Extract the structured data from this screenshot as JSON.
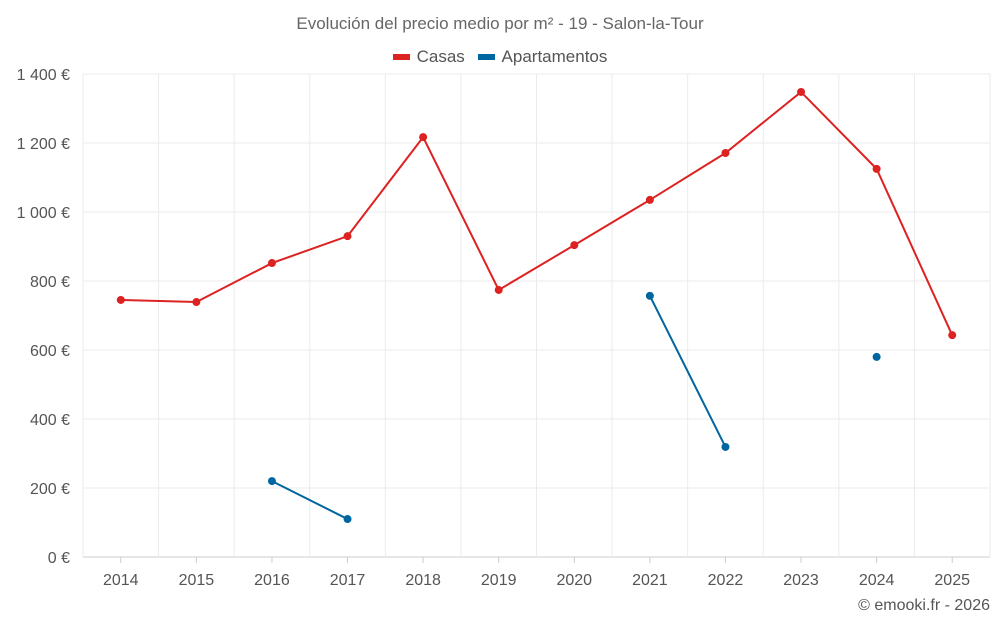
{
  "chart_data": {
    "type": "line",
    "title": "Evolución del precio medio por m² - 19 - Salon-la-Tour",
    "categories": [
      "2014",
      "2015",
      "2016",
      "2017",
      "2018",
      "2019",
      "2020",
      "2021",
      "2022",
      "2023",
      "2024",
      "2025"
    ],
    "series": [
      {
        "name": "Casas",
        "color": "#dd2222",
        "values": [
          745,
          739,
          852,
          930,
          1217,
          774,
          904,
          1035,
          1171,
          1348,
          1125,
          643
        ]
      },
      {
        "name": "Apartamentos",
        "color": "#0066a0",
        "values": [
          null,
          null,
          220,
          110,
          null,
          null,
          null,
          757,
          319,
          null,
          580,
          null
        ]
      }
    ],
    "ylim": [
      0,
      1400
    ],
    "yticks": [
      0,
      200,
      400,
      600,
      800,
      1000,
      1200,
      1400
    ],
    "ytick_labels": [
      "0 €",
      "200 €",
      "400 €",
      "600 €",
      "800 €",
      "1 000 €",
      "1 200 €",
      "1 400 €"
    ],
    "xlabel": "",
    "ylabel": "",
    "grid": true,
    "legend_position": "top-center"
  },
  "credit": "© emooki.fr - 2026"
}
